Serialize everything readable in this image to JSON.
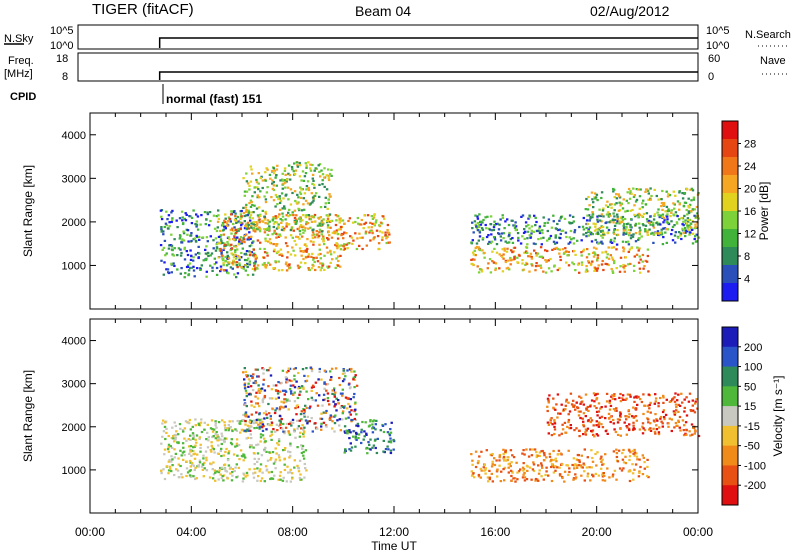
{
  "header": {
    "title": "TIGER (fitACF)",
    "beam": "Beam 04",
    "date": "02/Aug/2012"
  },
  "summary_panels": {
    "nsky": {
      "label": "N.Sky",
      "ticks_left": [
        "10^5",
        "10^0"
      ],
      "right_label": "N.Search",
      "ticks_right": [
        "10^5",
        "10^0"
      ]
    },
    "freq": {
      "label_line1": "Freq.",
      "label_line2": "[MHz]",
      "ticks_left": [
        "18",
        "8"
      ],
      "right_label": "Nave",
      "ticks_right": [
        "60",
        "0"
      ]
    },
    "cpid": {
      "label": "CPID",
      "mode_text": "normal (fast) 151"
    }
  },
  "chart_data": [
    {
      "type": "heatmap",
      "name": "power",
      "ylabel": "Slant Range [km]",
      "xlabel": "",
      "xlim": [
        0,
        24
      ],
      "ylim": [
        0,
        4500
      ],
      "yticks": [
        1000,
        2000,
        3000,
        4000
      ],
      "colorbar": {
        "label": "Power [dB]",
        "ticks": [
          4,
          8,
          12,
          16,
          20,
          24,
          28
        ],
        "colors": [
          "#1c1cf0",
          "#2a4fb8",
          "#2f8a5a",
          "#41b33a",
          "#7dd23a",
          "#e0d21e",
          "#f5a623",
          "#f07818",
          "#e64612",
          "#e01010"
        ]
      },
      "observations_start_ut": 2.75,
      "echo_regions": [
        {
          "ut": [
            2.75,
            6.5
          ],
          "range_km": [
            750,
            2300
          ],
          "level": "low"
        },
        {
          "ut": [
            5.0,
            10.0
          ],
          "range_km": [
            900,
            2200
          ],
          "level": "high"
        },
        {
          "ut": [
            6.0,
            9.5
          ],
          "range_km": [
            1800,
            3400
          ],
          "level": "mid"
        },
        {
          "ut": [
            9.5,
            11.8
          ],
          "range_km": [
            1400,
            2200
          ],
          "level": "high"
        },
        {
          "ut": [
            15.0,
            22.0
          ],
          "range_km": [
            850,
            1450
          ],
          "level": "high"
        },
        {
          "ut": [
            15.0,
            24.0
          ],
          "range_km": [
            1500,
            2200
          ],
          "level": "low"
        },
        {
          "ut": [
            19.5,
            24.0
          ],
          "range_km": [
            1700,
            2800
          ],
          "level": "mid"
        }
      ]
    },
    {
      "type": "heatmap",
      "name": "velocity",
      "ylabel": "Slant Range [km]",
      "xlabel": "Time UT",
      "xlim": [
        0,
        24
      ],
      "ylim": [
        0,
        4500
      ],
      "yticks": [
        1000,
        2000,
        3000,
        4000
      ],
      "xticks": [
        "00:00",
        "04:00",
        "08:00",
        "12:00",
        "16:00",
        "20:00",
        "00:00"
      ],
      "colorbar": {
        "label": "Velocity [m s⁻¹]",
        "ticks": [
          200,
          100,
          50,
          15,
          -15,
          -50,
          -100,
          -200
        ],
        "colors": [
          "#1c1cb8",
          "#2a55c8",
          "#2f8a5a",
          "#4fb83a",
          "#c8c8c0",
          "#f0c030",
          "#f08a18",
          "#e85014",
          "#e01010"
        ]
      },
      "observations_start_ut": 2.75,
      "echo_regions": [
        {
          "ut": [
            2.75,
            8.5
          ],
          "range_km": [
            750,
            2200
          ],
          "velocity": "near zero"
        },
        {
          "ut": [
            6.0,
            10.5
          ],
          "range_km": [
            1900,
            3400
          ],
          "velocity": "mixed"
        },
        {
          "ut": [
            10.0,
            12.0
          ],
          "range_km": [
            1400,
            2200
          ],
          "velocity": "towards"
        },
        {
          "ut": [
            15.0,
            22.0
          ],
          "range_km": [
            750,
            1500
          ],
          "velocity": "away"
        },
        {
          "ut": [
            18.0,
            24.0
          ],
          "range_km": [
            1800,
            2800
          ],
          "velocity": "strongly away"
        }
      ]
    }
  ]
}
